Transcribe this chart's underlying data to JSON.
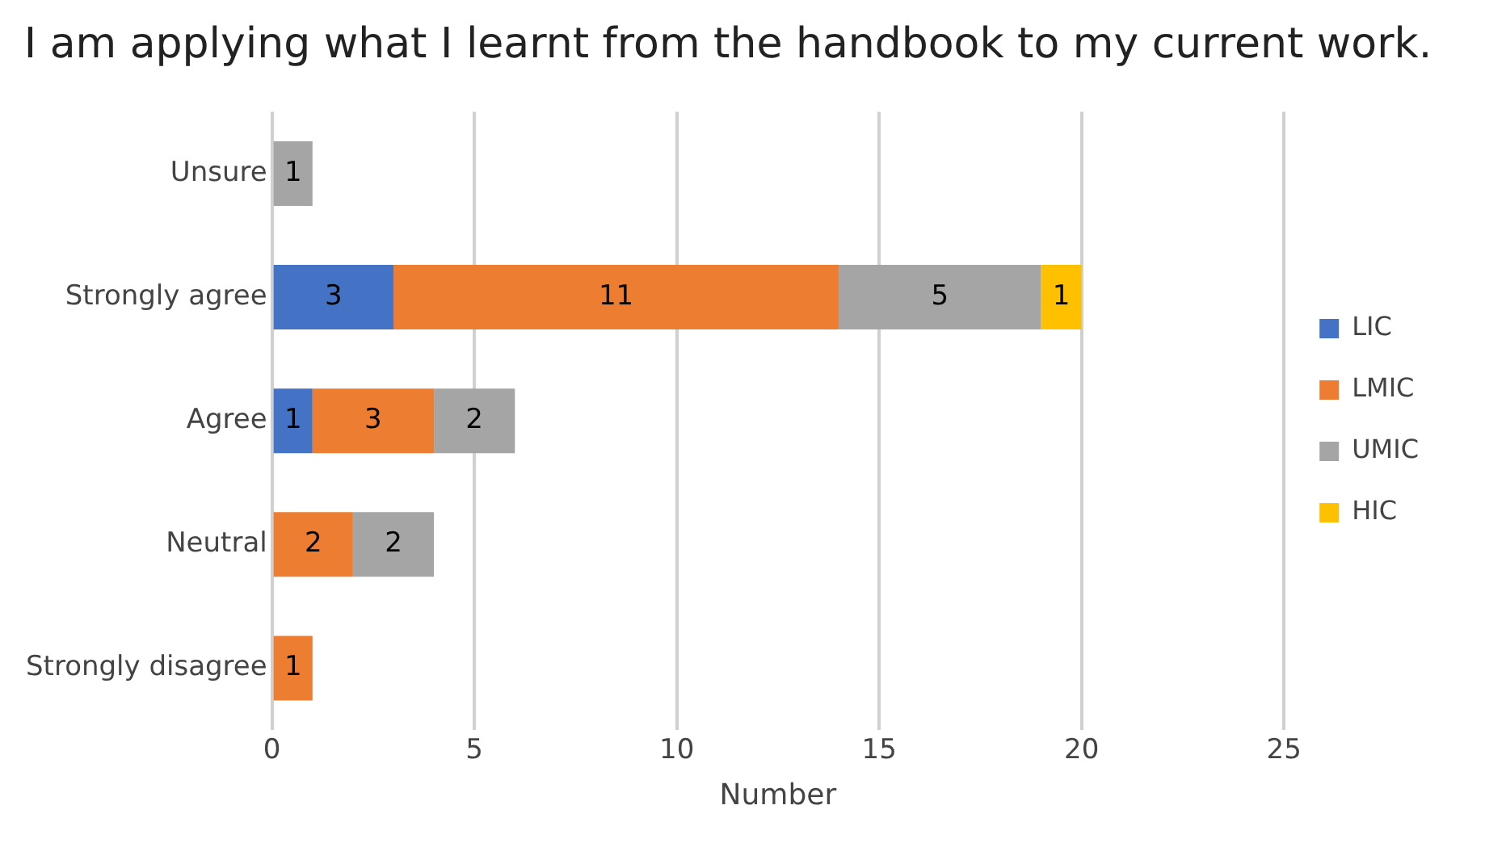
{
  "chart_data": {
    "type": "bar",
    "orientation": "horizontal",
    "stacked": true,
    "title": "I am applying what I learnt from the handbook to my current work.",
    "xlabel": "Number",
    "categories": [
      "Unsure",
      "Strongly agree",
      "Agree",
      "Neutral",
      "Strongly disagree"
    ],
    "series": [
      {
        "name": "LIC",
        "color": "#4472c4",
        "values": [
          null,
          3,
          1,
          null,
          null
        ]
      },
      {
        "name": "LMIC",
        "color": "#ed7d31",
        "values": [
          null,
          11,
          3,
          2,
          1
        ]
      },
      {
        "name": "UMIC",
        "color": "#a5a5a5",
        "values": [
          1,
          5,
          2,
          2,
          null
        ]
      },
      {
        "name": "HIC",
        "color": "#ffc000",
        "values": [
          null,
          1,
          null,
          null,
          null
        ]
      }
    ],
    "xlim": [
      0,
      25
    ],
    "xticks": [
      0,
      5,
      10,
      15,
      20,
      25
    ],
    "grid": "x",
    "legend": "right",
    "data_labels": true
  }
}
